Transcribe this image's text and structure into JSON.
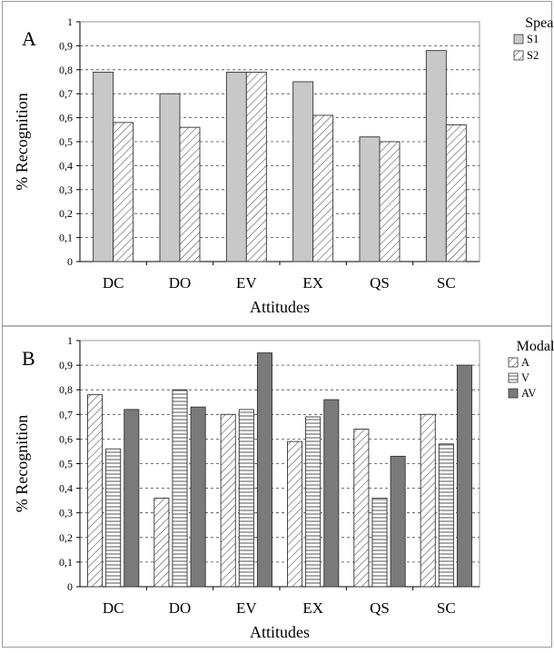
{
  "chart_data": [
    {
      "type": "bar",
      "panel_label": "A",
      "categories": [
        "DC",
        "DO",
        "EV",
        "EX",
        "QS",
        "SC"
      ],
      "series": [
        {
          "name": "S1",
          "values": [
            0.79,
            0.7,
            0.79,
            0.75,
            0.52,
            0.88
          ],
          "fill": "solid-light",
          "color": "#c8c8c8"
        },
        {
          "name": "S2",
          "values": [
            0.58,
            0.56,
            0.79,
            0.61,
            0.5,
            0.57
          ],
          "fill": "diagonal-hatch",
          "color": "#ffffff"
        }
      ],
      "xlabel": "Attitudes",
      "ylabel": "% Recognition",
      "ylim": [
        0,
        1
      ],
      "yticks": [
        "0",
        "0,1",
        "0,2",
        "0,3",
        "0,4",
        "0,5",
        "0,6",
        "0,7",
        "0,8",
        "0,9",
        "1"
      ],
      "grid": "dashed horizontal",
      "legend_title": "Speaker",
      "legend_position": "top-right"
    },
    {
      "type": "bar",
      "panel_label": "B",
      "categories": [
        "DC",
        "DO",
        "EV",
        "EX",
        "QS",
        "SC"
      ],
      "series": [
        {
          "name": "A",
          "values": [
            0.78,
            0.36,
            0.7,
            0.59,
            0.64,
            0.7
          ],
          "fill": "diagonal-hatch",
          "color": "#ffffff"
        },
        {
          "name": "V",
          "values": [
            0.56,
            0.8,
            0.72,
            0.69,
            0.36,
            0.58
          ],
          "fill": "horizontal-hatch",
          "color": "#ffffff"
        },
        {
          "name": "AV",
          "values": [
            0.72,
            0.73,
            0.95,
            0.76,
            0.53,
            0.9
          ],
          "fill": "solid-dark",
          "color": "#7a7a7a"
        }
      ],
      "xlabel": "Attitudes",
      "ylabel": "% Recognition",
      "ylim": [
        0,
        1
      ],
      "yticks": [
        "0",
        "0,1",
        "0,2",
        "0,3",
        "0,4",
        "0,5",
        "0,6",
        "0,7",
        "0,8",
        "0,9",
        "1"
      ],
      "grid": "dashed horizontal",
      "legend_title": "Modality",
      "legend_position": "top-right"
    }
  ]
}
